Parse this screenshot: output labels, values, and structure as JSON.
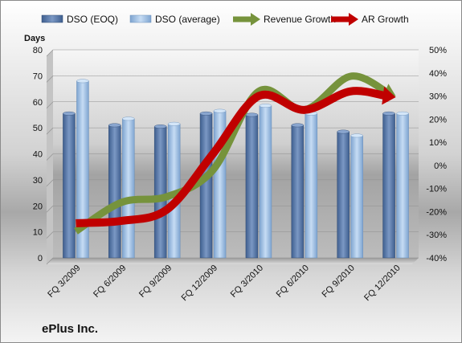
{
  "company_label": "ePlus Inc.",
  "colors": {
    "dso_eoq": "#5b79a6",
    "dso_avg": "#9dc0e6",
    "revenue_growth": "#76933c",
    "ar_growth": "#c00000"
  },
  "chart_data": {
    "type": "bar",
    "categories": [
      "FQ 3/2009",
      "FQ 6/2009",
      "FQ 9/2009",
      "FQ 12/2009",
      "FQ 3/2010",
      "FQ 6/2010",
      "FQ 9/2010",
      "FQ 12/2010"
    ],
    "ylabel": "Days",
    "ylim": [
      0,
      80
    ],
    "yticks": [
      0,
      10,
      20,
      30,
      40,
      50,
      60,
      70,
      80
    ],
    "y2lim": [
      -40,
      50
    ],
    "y2ticks": [
      "-40%",
      "-30%",
      "-20%",
      "-10%",
      "0%",
      "10%",
      "20%",
      "30%",
      "40%",
      "50%"
    ],
    "y2ticks_values": [
      -40,
      -30,
      -20,
      -10,
      0,
      10,
      20,
      30,
      40,
      50
    ],
    "legend_placement": "top",
    "series": [
      {
        "name": "DSO (EOQ)",
        "kind": "bar",
        "axis": "left",
        "values": [
          55.5,
          51,
          50.5,
          55.5,
          55,
          51,
          48.5,
          55.5
        ]
      },
      {
        "name": "DSO (average)",
        "kind": "bar",
        "axis": "left",
        "values": [
          68,
          53.5,
          51.5,
          56.5,
          58.5,
          55.5,
          47,
          55.5
        ]
      },
      {
        "name": "Revenue Growth",
        "kind": "line",
        "axis": "right",
        "values": [
          -28.5,
          -16,
          -13.5,
          -2,
          32,
          24,
          38.5,
          30
        ]
      },
      {
        "name": "AR Growth",
        "kind": "line",
        "axis": "right",
        "values": [
          -25,
          -24,
          -19,
          5,
          30,
          24,
          32,
          29.5
        ]
      }
    ]
  }
}
